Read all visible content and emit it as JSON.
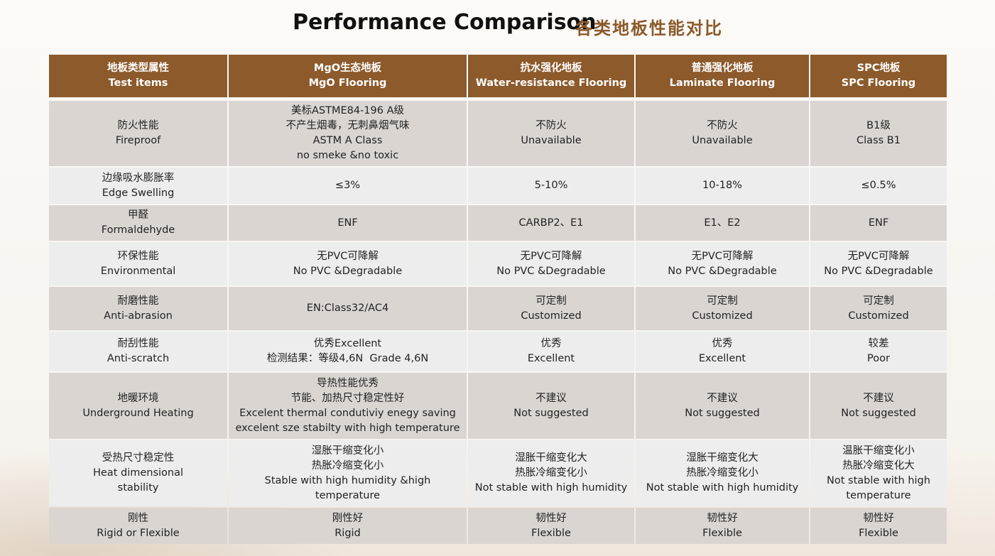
{
  "title": {
    "en": "Performance Comparison",
    "zh": "各类地板性能对比"
  },
  "table": {
    "header": [
      [
        "地板类型属性",
        "Test items"
      ],
      [
        "MgO生态地板",
        "MgO Flooring"
      ],
      [
        "抗水强化地板",
        "Water-resistance Flooring"
      ],
      [
        "普通强化地板",
        "Laminate Flooring"
      ],
      [
        "SPC地板",
        "SPC Flooring"
      ]
    ],
    "rows": [
      [
        [
          "防火性能",
          "Fireproof"
        ],
        [
          "美标ASTME84-196 A级",
          "不产生烟毒，无刺鼻烟气味",
          "ASTM A Class",
          "no smeke &no toxic"
        ],
        [
          "不防火",
          "Unavailable"
        ],
        [
          "不防火",
          "Unavailable"
        ],
        [
          "B1级",
          "Class B1"
        ]
      ],
      [
        [
          "边缘吸水膨胀率",
          "Edge Swelling"
        ],
        [
          "≤3%"
        ],
        [
          "5-10%"
        ],
        [
          "10-18%"
        ],
        [
          "≤0.5%"
        ]
      ],
      [
        [
          "甲醛",
          "Formaldehyde"
        ],
        [
          "ENF"
        ],
        [
          "CARBP2、E1"
        ],
        [
          "E1、E2"
        ],
        [
          "ENF"
        ]
      ],
      [
        [
          "环保性能",
          "Environmental"
        ],
        [
          "无PVC可降解",
          "No PVC &Degradable"
        ],
        [
          "无PVC可降解",
          "No PVC &Degradable"
        ],
        [
          "无PVC可降解",
          "No PVC &Degradable"
        ],
        [
          "无PVC可降解",
          "No PVC &Degradable"
        ]
      ],
      [
        [
          "耐磨性能",
          "Anti-abrasion"
        ],
        [
          "EN:Class32/AC4"
        ],
        [
          "可定制",
          "Customized"
        ],
        [
          "可定制",
          "Customized"
        ],
        [
          "可定制",
          "Customized"
        ]
      ],
      [
        [
          "耐刮性能",
          "Anti-scratch"
        ],
        [
          "优秀Excellent",
          "检测结果：等级4,6N  Grade 4,6N"
        ],
        [
          "优秀",
          "Excellent"
        ],
        [
          "优秀",
          "Excellent"
        ],
        [
          "较差",
          "Poor"
        ]
      ],
      [
        [
          "地暖环境",
          "Underground Heating"
        ],
        [
          "导热性能优秀",
          "节能、加热尺寸稳定性好",
          "Excelent thermal condutiviy enegy saving",
          "excelent sze stabilty with high temperature"
        ],
        [
          "不建议",
          "Not suggested"
        ],
        [
          "不建议",
          "Not suggested"
        ],
        [
          "不建议",
          "Not suggested"
        ]
      ],
      [
        [
          "受热尺寸稳定性",
          "Heat dimensional",
          "stability"
        ],
        [
          "湿胀干缩变化小",
          "热胀冷缩变化小",
          "Stable with high humidity &high",
          "temperature"
        ],
        [
          "湿胀干缩变化大",
          "热胀冷缩变化小",
          "Not stable with high humidity"
        ],
        [
          "湿胀干缩变化大",
          "热胀冷缩变化小",
          "Not stable with high humidity"
        ],
        [
          "温胀干缩变化小",
          "热胀冷缩变化大",
          "Not stable with high",
          "temperature"
        ]
      ],
      [
        [
          "刚性",
          "Rigid or Flexible"
        ],
        [
          "刚性好",
          "Rigid"
        ],
        [
          "韧性好",
          "Flexible"
        ],
        [
          "韧性好",
          "Flexible"
        ],
        [
          "韧性好",
          "Flexible"
        ]
      ]
    ]
  }
}
